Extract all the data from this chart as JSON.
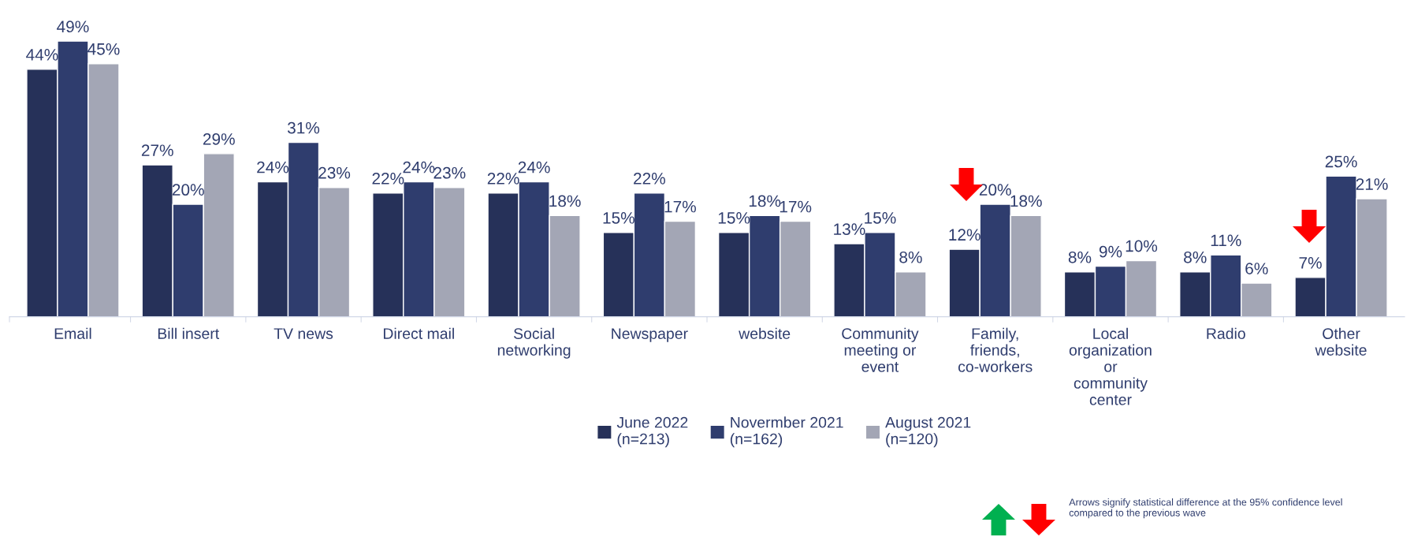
{
  "chart_data": {
    "type": "bar",
    "categories": [
      "Email",
      "Bill insert",
      "TV news",
      "Direct mail",
      "Social\nnetworking",
      "Newspaper",
      "website",
      "Community\nmeeting or\nevent",
      "Family,\nfriends,\nco-workers",
      "Local\norganization\nor\ncommunity\ncenter",
      "Radio",
      "Other\nwebsite"
    ],
    "series": [
      {
        "name": "June 2022\n(n=213)",
        "color": "#263159",
        "values": [
          44,
          27,
          24,
          22,
          22,
          15,
          15,
          13,
          12,
          8,
          8,
          7
        ],
        "value_labels": [
          "44%",
          "27%",
          "24%",
          "22%",
          "22%",
          "15%",
          "15%",
          "13%",
          "12%",
          "8%",
          "8%",
          "7%"
        ]
      },
      {
        "name": "Novermber 2021\n(n=162)",
        "color": "#2f3d6e",
        "values": [
          49,
          20,
          31,
          24,
          24,
          22,
          18,
          15,
          20,
          9,
          11,
          25
        ],
        "value_labels": [
          "49%",
          "20%",
          "31%",
          "24%",
          "24%",
          "22%",
          "18%",
          "15%",
          "20%",
          "9%",
          "11%",
          "25%"
        ]
      },
      {
        "name": "August 2021\n(n=120)",
        "color": "#a3a6b5",
        "values": [
          45,
          29,
          23,
          23,
          18,
          17,
          17,
          8,
          18,
          10,
          6,
          21
        ],
        "value_labels": [
          "45%",
          "29%",
          "23%",
          "23%",
          "18%",
          "17%",
          "17%",
          "8%",
          "18%",
          "10%",
          "6%",
          "21%"
        ]
      }
    ],
    "legend": "bottom",
    "grid": false,
    "annotations": [
      "Arrows signify statistical difference at the 95% confidence level\ncompared to the previous wave"
    ]
  }
}
